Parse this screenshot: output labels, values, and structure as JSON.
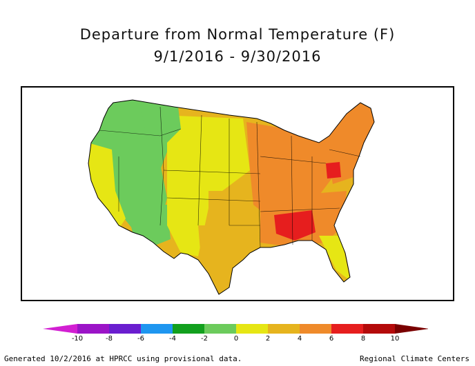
{
  "title": "Departure from Normal Temperature (F)",
  "subtitle": "9/1/2016 - 9/30/2016",
  "legend": {
    "ticks": [
      "-10",
      "-8",
      "-6",
      "-4",
      "-2",
      "0",
      "2",
      "4",
      "6",
      "8",
      "10"
    ],
    "colors": [
      "#d21fd2",
      "#9b14c7",
      "#6a1ecf",
      "#1e96f0",
      "#12a01e",
      "#6ccb5c",
      "#e6e614",
      "#e6b41e",
      "#ef8a2a",
      "#e61e1e",
      "#b40a0a",
      "#7a0000"
    ]
  },
  "regions": [
    {
      "name": "pacific-northwest",
      "color": "#6ccb5c"
    },
    {
      "name": "northern-rockies",
      "color": "#6ccb5c"
    },
    {
      "name": "great-basin",
      "color": "#6ccb5c"
    },
    {
      "name": "california",
      "color": "#e6e614"
    },
    {
      "name": "southwest",
      "color": "#6ccb5c"
    },
    {
      "name": "high-plains",
      "color": "#e6e614"
    },
    {
      "name": "southern-plains",
      "color": "#e6b41e"
    },
    {
      "name": "texas",
      "color": "#e6b41e"
    },
    {
      "name": "midwest",
      "color": "#ef8a2a"
    },
    {
      "name": "northeast",
      "color": "#ef8a2a"
    },
    {
      "name": "southeast",
      "color": "#ef8a2a"
    },
    {
      "name": "florida",
      "color": "#e6e614"
    },
    {
      "name": "tennessee-alabama-hotspot",
      "color": "#e61e1e"
    },
    {
      "name": "ohio-hotspot",
      "color": "#e61e1e"
    }
  ],
  "footer": {
    "left": "Generated 10/2/2016 at HPRCC using provisional data.",
    "right": "Regional Climate Centers"
  }
}
